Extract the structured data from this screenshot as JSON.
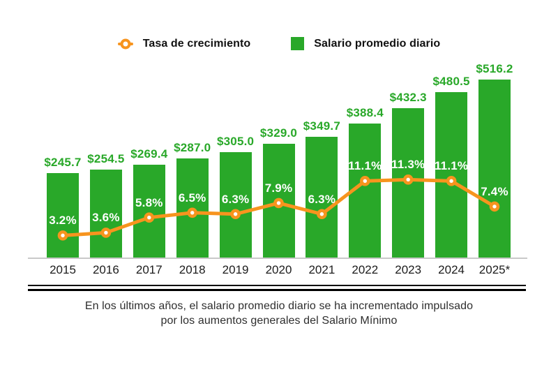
{
  "legend": {
    "line_label": "Tasa de crecimiento",
    "bar_label": "Salario promedio diario"
  },
  "caption": {
    "line1": "En los últimos años, el salario promedio diario se ha incrementado impulsado",
    "line2": "por los aumentos generales del Salario Mínimo"
  },
  "colors": {
    "bar_green": "#29A829",
    "line_orange": "#F7941E",
    "percent_label_white": "#FFFFFF",
    "year_text": "#1C1C1C",
    "caption_text": "#2E2E2E",
    "axis_line": "#C9C9C9",
    "rule_black": "#000000"
  },
  "chart_data": {
    "type": "bar+line",
    "title": "",
    "xlabel": "",
    "ylabel": "",
    "gridlines": false,
    "y_axis_visible": false,
    "legend_position": "top-center",
    "categories": [
      "2015",
      "2016",
      "2017",
      "2018",
      "2019",
      "2020",
      "2021",
      "2022",
      "2023",
      "2024",
      "2025*"
    ],
    "series": [
      {
        "name": "Salario promedio diario",
        "type": "bar",
        "color": "#29A829",
        "unit": "MXN $ per day",
        "values": [
          245.7,
          254.5,
          269.4,
          287.0,
          305.0,
          329.0,
          349.7,
          388.4,
          432.3,
          480.5,
          516.2
        ],
        "value_labels": [
          "$245.7",
          "$254.5",
          "$269.4",
          "$287.0",
          "$305.0",
          "$329.0",
          "$349.7",
          "$388.4",
          "$432.3",
          "$480.5",
          "$516.2"
        ]
      },
      {
        "name": "Tasa de crecimiento",
        "type": "line",
        "color": "#F7941E",
        "unit": "% annual growth",
        "values": [
          3.2,
          3.6,
          5.8,
          6.5,
          6.3,
          7.9,
          6.3,
          11.1,
          11.3,
          11.1,
          7.4
        ],
        "value_labels": [
          "3.2%",
          "3.6%",
          "5.8%",
          "6.5%",
          "6.3%",
          "7.9%",
          "6.3%",
          "11.1%",
          "11.3%",
          "11.1%",
          "7.4%"
        ]
      }
    ]
  }
}
